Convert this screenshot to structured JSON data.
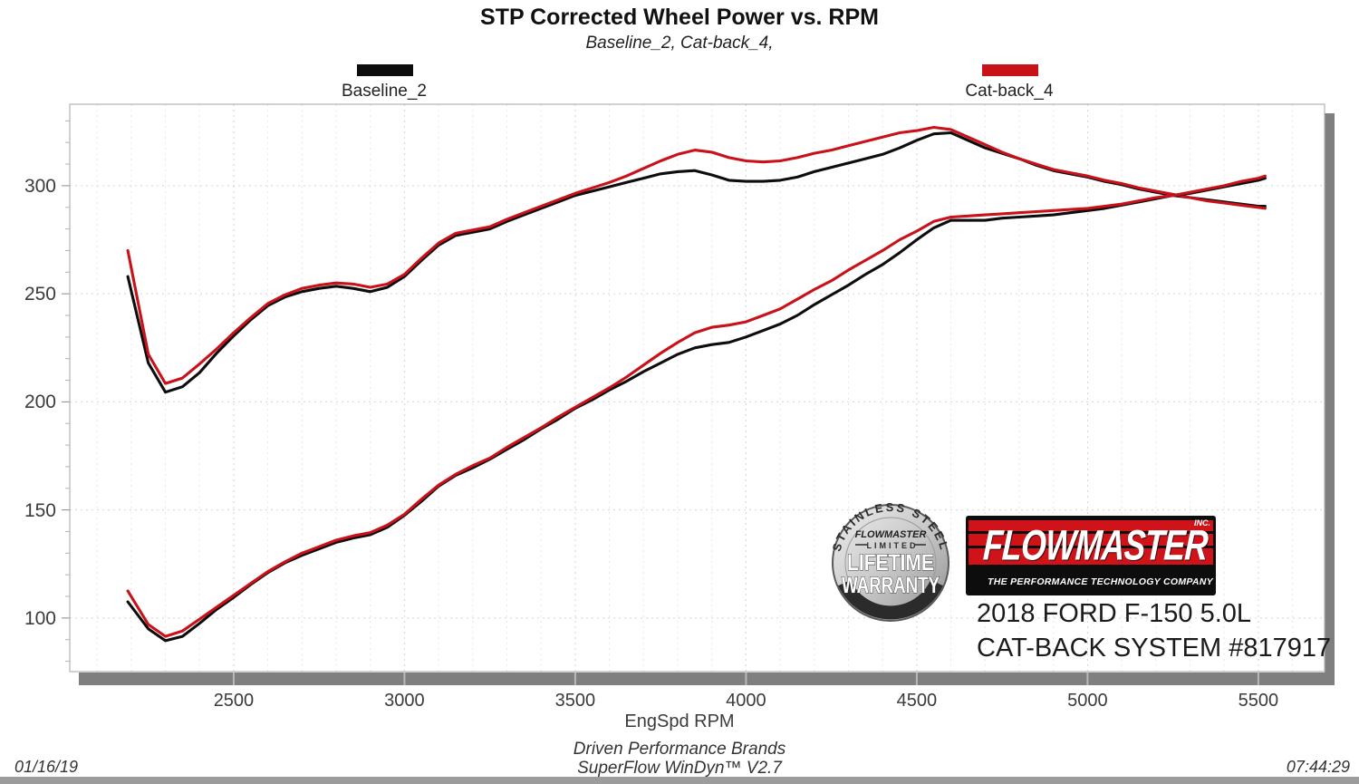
{
  "title": "STP Corrected Wheel Power vs. RPM",
  "subtitle": "Baseline_2, Cat-back_4,",
  "legend": [
    {
      "label": "Baseline_2",
      "color": "#0d0d0d"
    },
    {
      "label": "Cat-back_4",
      "color": "#c9111a"
    }
  ],
  "axis": {
    "x_title": "EngSpd  RPM"
  },
  "footer": {
    "date": "01/16/19",
    "time": "07:44:29",
    "brand_line1": "Driven Performance Brands",
    "brand_line2": "SuperFlow WinDyn™  V2.7"
  },
  "branding": {
    "badge": {
      "arc_top": "STAINLESS STEEL",
      "brand": "FLOWMASTER",
      "limited": "LIMITED",
      "big1": "LIFETIME",
      "big2": "WARRANTY"
    },
    "logo": {
      "name": "FLOWMASTER",
      "inc": "INC.",
      "tagline": "THE PERFORMANCE TECHNOLOGY COMPANY"
    },
    "vehicle_line1": "2018 FORD F-150 5.0L",
    "vehicle_line2": "CAT-BACK SYSTEM #817917"
  },
  "chart_data": {
    "type": "line",
    "title": "STP Corrected Wheel Power vs. RPM",
    "xlabel": "EngSpd RPM",
    "ylabel": "",
    "xlim": [
      2020,
      5694
    ],
    "ylim": [
      75.2,
      337.7
    ],
    "x_ticks": [
      2500,
      3000,
      3500,
      4000,
      4500,
      5000,
      5500
    ],
    "y_ticks": [
      100,
      150,
      200,
      250,
      300
    ],
    "grid": "dashed, vertical minors every 100 RPM, horizontal lines every 50",
    "legend_position": "top",
    "x": [
      2190,
      2250,
      2300,
      2350,
      2400,
      2450,
      2500,
      2550,
      2600,
      2650,
      2700,
      2750,
      2800,
      2850,
      2900,
      2950,
      3000,
      3050,
      3100,
      3150,
      3200,
      3250,
      3300,
      3350,
      3400,
      3450,
      3500,
      3550,
      3600,
      3650,
      3700,
      3750,
      3800,
      3850,
      3900,
      3950,
      4000,
      4050,
      4100,
      4150,
      4200,
      4250,
      4300,
      4350,
      4400,
      4450,
      4500,
      4550,
      4600,
      4650,
      4700,
      4750,
      4800,
      4850,
      4900,
      4950,
      5000,
      5050,
      5100,
      5150,
      5200,
      5250,
      5300,
      5350,
      5400,
      5450,
      5500,
      5520
    ],
    "series": [
      {
        "name": "Baseline_2 torque",
        "color": "#0d0d0d",
        "values": [
          258,
          218,
          204.5,
          207,
          213.5,
          222.5,
          230.5,
          238,
          244.5,
          248.5,
          251,
          252.5,
          253.5,
          252.5,
          251,
          253,
          258,
          265.5,
          272.5,
          277,
          278.5,
          280,
          283.5,
          286.5,
          289.5,
          292.5,
          295.5,
          297.5,
          299.5,
          301.5,
          303.5,
          305.5,
          306.5,
          307,
          305,
          302.5,
          302,
          302,
          302.5,
          304,
          306.5,
          308.5,
          310.5,
          312.5,
          314.5,
          317.5,
          321,
          324,
          324.5,
          321,
          317.5,
          315,
          312.5,
          309.5,
          307,
          305.5,
          304,
          302,
          300.5,
          298.5,
          297,
          295.5,
          294.5,
          293.5,
          292.5,
          291.5,
          290.5,
          290.5
        ]
      },
      {
        "name": "Cat-back_4 torque",
        "color": "#c9111a",
        "values": [
          270,
          222,
          208.5,
          211,
          217.5,
          224.5,
          232,
          239,
          245.5,
          249.5,
          252.5,
          254,
          255,
          254.5,
          253,
          254.5,
          259,
          266.5,
          273.5,
          278,
          279.5,
          281,
          284.5,
          287.5,
          290.5,
          293.5,
          296.5,
          299,
          301.5,
          304.5,
          308,
          311.5,
          314.5,
          316.5,
          315.5,
          313,
          311.5,
          311,
          311.5,
          313,
          315,
          316.5,
          318.5,
          320.5,
          322.5,
          324.5,
          325.5,
          327,
          326,
          322.5,
          319,
          315.5,
          312.5,
          310,
          307.5,
          306,
          304.5,
          302.5,
          301,
          299,
          297.5,
          296,
          294.5,
          293,
          292,
          291,
          290,
          289.5
        ]
      },
      {
        "name": "Baseline_2 power",
        "color": "#0d0d0d",
        "values": [
          107.5,
          95,
          89.5,
          91.5,
          97.5,
          104,
          109.5,
          115.5,
          121,
          125.5,
          129,
          132,
          135,
          137,
          138.5,
          142,
          147.5,
          154,
          161,
          166,
          169.5,
          173.5,
          178,
          182.5,
          187.5,
          192,
          197,
          201,
          205.5,
          209.5,
          214,
          218,
          222,
          225,
          226.5,
          227.5,
          230,
          233,
          236,
          240,
          245,
          249.5,
          254,
          259,
          263.5,
          269,
          275,
          280.5,
          284,
          284,
          284,
          285,
          285.5,
          286,
          286.5,
          287.5,
          288.5,
          289.5,
          291,
          292.5,
          294,
          295.5,
          296.5,
          298,
          299.5,
          301,
          302.5,
          303.5
        ]
      },
      {
        "name": "Cat-back_4 power",
        "color": "#c9111a",
        "values": [
          112.5,
          97,
          91.5,
          94,
          99.5,
          105,
          110.5,
          116,
          121.5,
          126,
          130,
          133,
          136,
          138,
          139.5,
          143,
          148,
          155,
          161.5,
          166.5,
          170.5,
          174,
          179,
          183.5,
          188,
          193,
          197.5,
          202,
          206.5,
          211.5,
          217,
          222.5,
          227.5,
          232,
          234.5,
          235.5,
          237,
          240,
          243,
          247.5,
          252,
          256,
          261,
          265.5,
          270,
          275,
          279,
          283.5,
          285.5,
          286,
          286.5,
          287,
          287.5,
          288,
          288.5,
          289,
          289.5,
          290.5,
          291.5,
          293,
          294.5,
          295.5,
          297,
          298.5,
          300,
          302,
          303.5,
          304.5
        ]
      }
    ]
  }
}
